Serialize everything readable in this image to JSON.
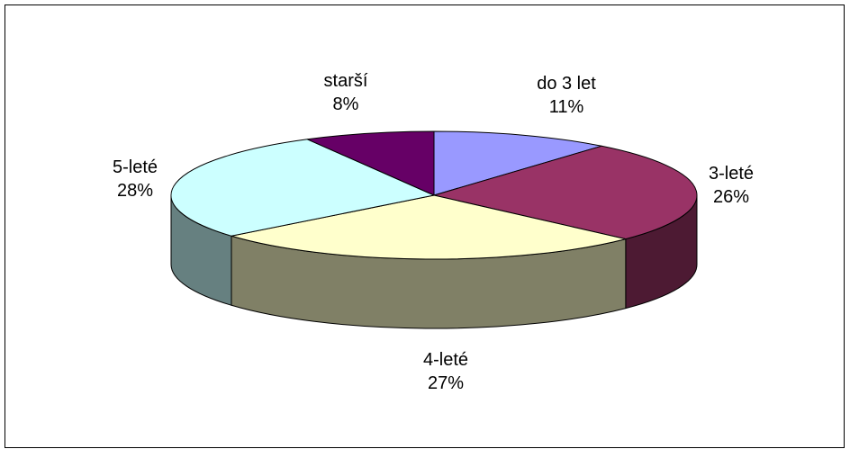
{
  "chart_data": {
    "type": "pie",
    "style": "3d-exploded-perspective",
    "start_angle_deg": -90,
    "direction": "clockwise",
    "slices": [
      {
        "label": "do 3 let",
        "value": 11,
        "value_label": "11%",
        "top_color": "#9999FF",
        "side_color": "#5C5C99"
      },
      {
        "label": "3-leté",
        "value": 26,
        "value_label": "26%",
        "top_color": "#993366",
        "side_color": "#4D1A33"
      },
      {
        "label": "4-leté",
        "value": 27,
        "value_label": "27%",
        "top_color": "#FFFFCC",
        "side_color": "#808066"
      },
      {
        "label": "5-leté",
        "value": 28,
        "value_label": "28%",
        "top_color": "#CCFFFF",
        "side_color": "#668080"
      },
      {
        "label": "starší",
        "value": 8,
        "value_label": "8%",
        "top_color": "#660066",
        "side_color": "#330033"
      }
    ],
    "legend": "none",
    "outline_color": "#000000"
  }
}
